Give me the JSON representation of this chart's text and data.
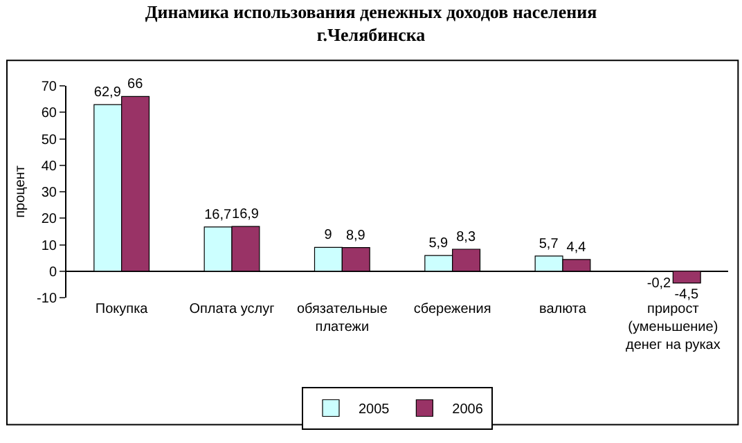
{
  "chart_data": {
    "type": "bar",
    "title": "Динамика использования денежных доходов населения г.Челябинска",
    "ylabel": "процент",
    "categories": [
      "Покупка",
      "Оплата услуг",
      "обязательные платежи",
      "сбережения",
      "валюта",
      "прирост (уменьшение) денег на руках"
    ],
    "series": [
      {
        "name": "2005",
        "color": "#ccffff",
        "values": [
          62.9,
          16.7,
          9,
          5.9,
          5.7,
          -0.2
        ],
        "value_labels": [
          "62,9",
          "16,7",
          "9",
          "5,9",
          "5,7",
          "-0,2"
        ]
      },
      {
        "name": "2006",
        "color": "#993366",
        "values": [
          66,
          16.9,
          8.9,
          8.3,
          4.4,
          -4.5
        ],
        "value_labels": [
          "66",
          "16,9",
          "8,9",
          "8,3",
          "4,4",
          "-4,5"
        ]
      }
    ],
    "ylim": [
      -10,
      70
    ],
    "yticks": [
      -10,
      0,
      10,
      20,
      30,
      40,
      50,
      60,
      70
    ],
    "grid": false,
    "legend": "bottom"
  }
}
